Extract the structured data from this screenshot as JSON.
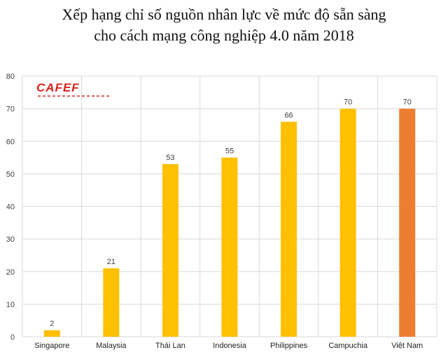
{
  "title_line1": "Xếp hạng chỉ số nguồn nhân lực về mức độ sẵn sàng",
  "title_line2": "cho cách mạng công nghiệp 4.0 năm 2018",
  "logo_text": "CAFEF",
  "colors": {
    "bar": "#ffc000",
    "highlight": "#ed7d31",
    "grid": "#d9d9d9",
    "axis_text": "#404040"
  },
  "chart_data": {
    "type": "bar",
    "title": "Xếp hạng chỉ số nguồn nhân lực về mức độ sẵn sàng cho cách mạng công nghiệp 4.0 năm 2018",
    "categories": [
      "Singapore",
      "Malaysia",
      "Thái Lan",
      "Indonesia",
      "Philippines",
      "Campuchia",
      "Việt Nam"
    ],
    "values": [
      2,
      21,
      53,
      55,
      66,
      70,
      70
    ],
    "highlight_index": 6,
    "ylim": [
      0,
      80
    ],
    "yticks": [
      0,
      10,
      20,
      30,
      40,
      50,
      60,
      70,
      80
    ],
    "grid": true,
    "data_labels": true
  }
}
